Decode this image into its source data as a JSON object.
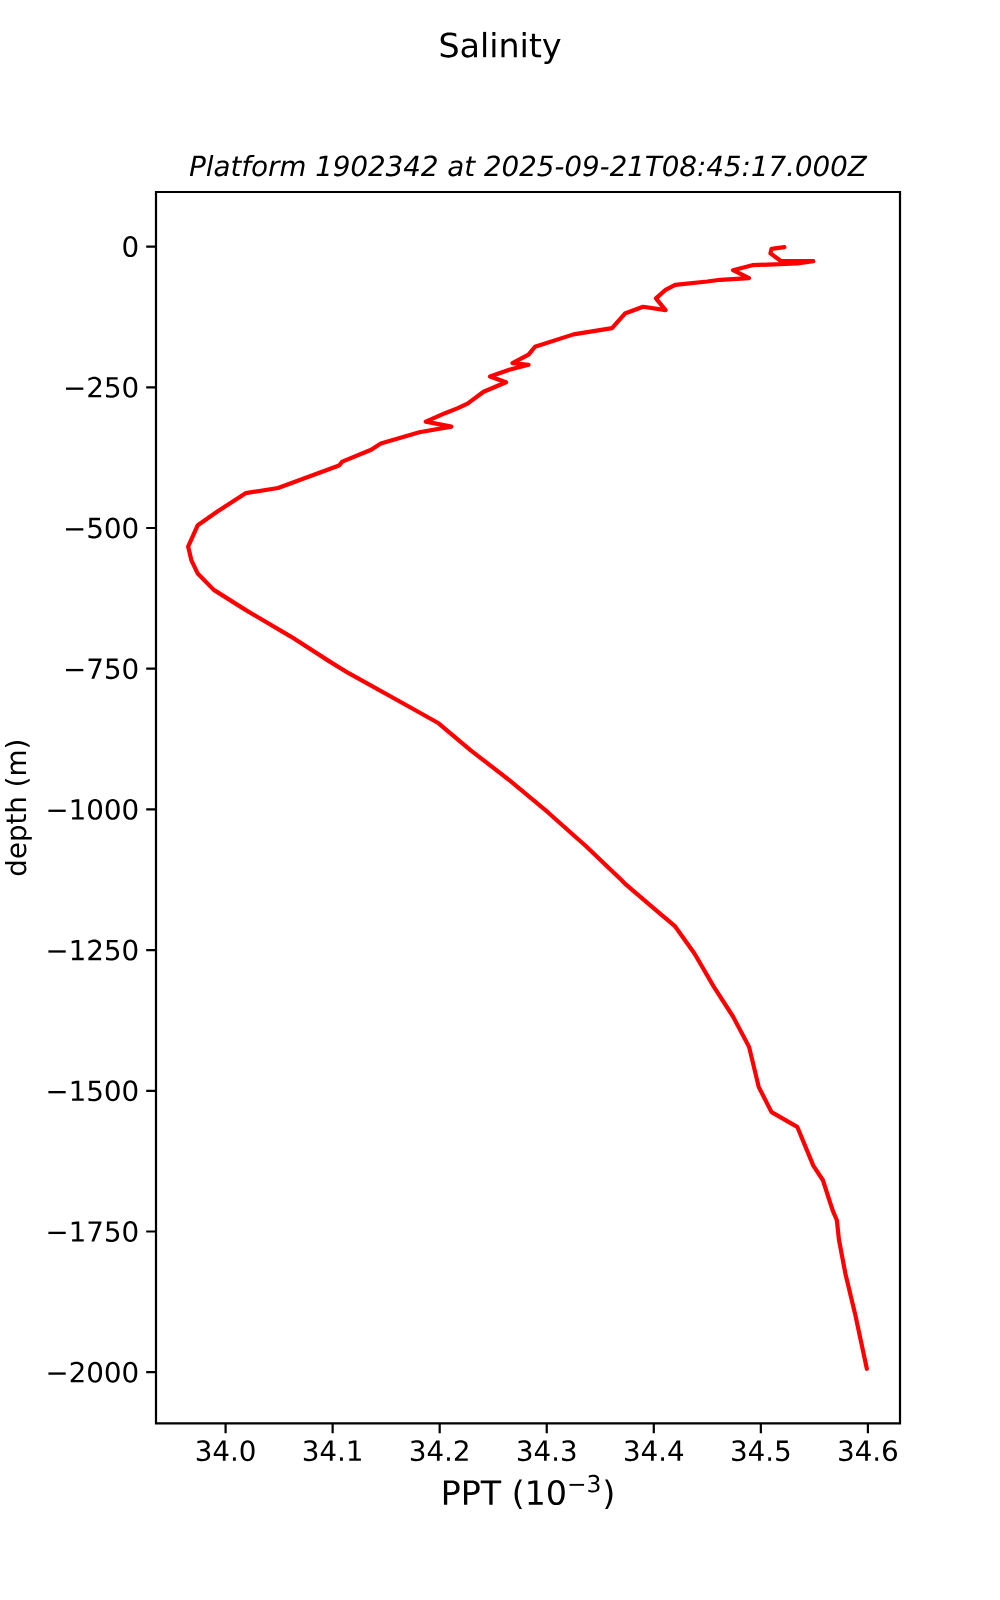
{
  "chart_data": {
    "type": "line",
    "title": "Salinity",
    "subtitle": "Platform 1902342 at 2025-09-21T08:45:17.000Z",
    "xlabel": "PPT (10$^{−3}$)",
    "ylabel": "depth (m)",
    "color": "#ff0000",
    "x": [
      34.522,
      34.51,
      34.509,
      34.519,
      34.549,
      34.534,
      34.492,
      34.474,
      34.489,
      34.462,
      34.45,
      34.42,
      34.411,
      34.402,
      34.411,
      34.39,
      34.373,
      34.361,
      34.325,
      34.289,
      34.283,
      34.268,
      34.283,
      34.265,
      34.247,
      34.262,
      34.241,
      34.226,
      34.217,
      34.205,
      34.187,
      34.211,
      34.181,
      34.145,
      34.136,
      34.109,
      34.106,
      34.049,
      34.019,
      33.992,
      33.974,
      33.965,
      33.968,
      33.974,
      33.989,
      34.019,
      34.061,
      34.097,
      34.115,
      34.169,
      34.199,
      34.229,
      34.265,
      34.301,
      34.337,
      34.37,
      34.373,
      34.402,
      34.42,
      34.438,
      34.456,
      34.474,
      34.489,
      34.498,
      34.51,
      34.534,
      34.549,
      34.558,
      34.567,
      34.571,
      34.573,
      34.579,
      34.588,
      34.599
    ],
    "values": [
      -1,
      -4,
      -12,
      -26,
      -26,
      -30,
      -33,
      -42,
      -56,
      -59,
      -62,
      -68,
      -77,
      -92,
      -113,
      -107,
      -119,
      -145,
      -156,
      -178,
      -192,
      -207,
      -210,
      -219,
      -231,
      -241,
      -258,
      -279,
      -287,
      -296,
      -311,
      -320,
      -330,
      -350,
      -361,
      -382,
      -389,
      -429,
      -438,
      -471,
      -495,
      -533,
      -557,
      -581,
      -610,
      -646,
      -693,
      -737,
      -758,
      -815,
      -847,
      -895,
      -948,
      -1005,
      -1066,
      -1126,
      -1132,
      -1179,
      -1208,
      -1256,
      -1315,
      -1368,
      -1422,
      -1493,
      -1538,
      -1564,
      -1633,
      -1659,
      -1712,
      -1730,
      -1765,
      -1825,
      -1896,
      -1994
    ],
    "xlim": [
      33.935,
      34.63
    ],
    "ylim": [
      -2091,
      97
    ],
    "xticks": [
      {
        "value": 34.0,
        "label": "34.0"
      },
      34.1,
      34.2,
      34.3,
      34.4,
      34.5,
      34.6
    ],
    "yticks": [
      {
        "value": 0,
        "label": "0"
      },
      {
        "value": -250,
        "label": "−250"
      },
      {
        "value": -500,
        "label": "−500"
      },
      {
        "value": -750,
        "label": "−750"
      },
      {
        "value": -1000,
        "label": "−1000"
      },
      {
        "value": -1250,
        "label": "−1250"
      },
      {
        "value": -1500,
        "label": "−1500"
      },
      {
        "value": -1750,
        "label": "−1750"
      },
      {
        "value": -2000,
        "label": "−2000"
      }
    ]
  }
}
